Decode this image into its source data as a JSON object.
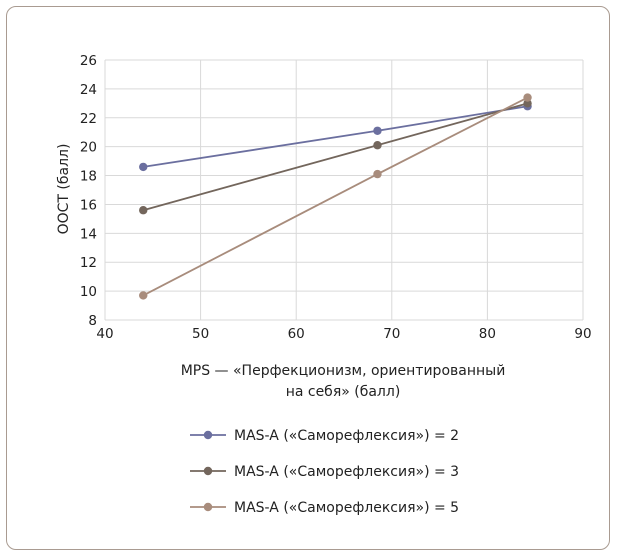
{
  "chart_data": {
    "type": "line",
    "xlabel_lines": [
      "MPS — «Перфекционизм, ориентированный",
      "на себя» (балл)"
    ],
    "ylabel": "ООСТ (балл)",
    "xlim": [
      40,
      90
    ],
    "ylim": [
      8,
      26
    ],
    "x_ticks": [
      40,
      50,
      60,
      70,
      80,
      90
    ],
    "y_ticks": [
      8,
      10,
      12,
      14,
      16,
      18,
      20,
      22,
      24,
      26
    ],
    "grid": true,
    "legend_position": "bottom",
    "series": [
      {
        "name": "MAS-A («Саморефлексия») = 2",
        "color": "#6b6f9f",
        "x": [
          44,
          68.5,
          84.2
        ],
        "y": [
          18.6,
          21.1,
          22.8
        ]
      },
      {
        "name": "MAS-A («Саморефлексия») = 3",
        "color": "#73665c",
        "x": [
          44,
          68.5,
          84.2
        ],
        "y": [
          15.6,
          20.1,
          23.0
        ]
      },
      {
        "name": "MAS-A («Саморефлексия») = 5",
        "color": "#a88c7c",
        "x": [
          44,
          68.5,
          84.2
        ],
        "y": [
          9.7,
          18.1,
          23.4
        ]
      }
    ]
  }
}
